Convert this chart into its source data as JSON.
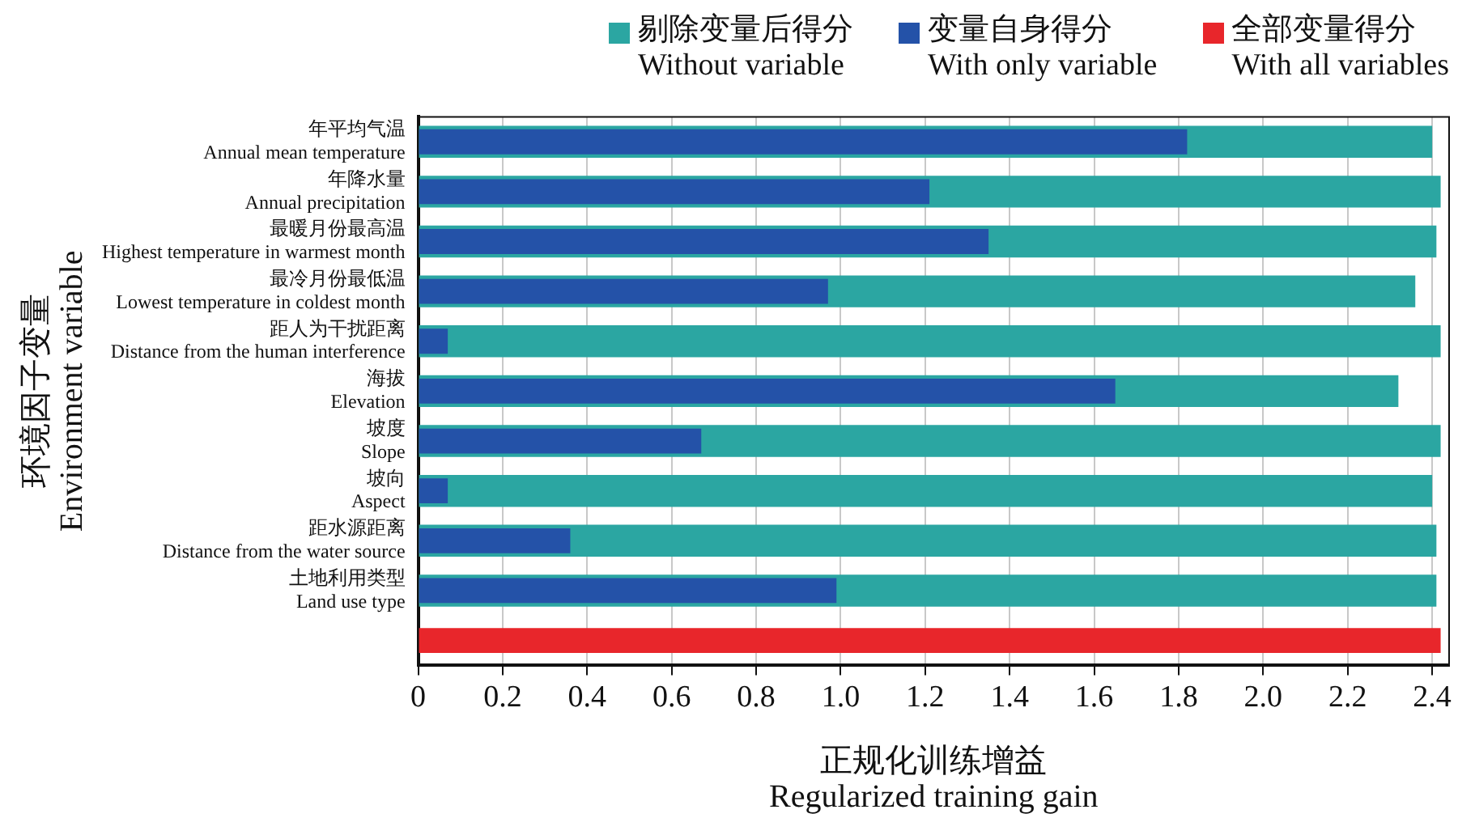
{
  "chart_data": {
    "type": "bar",
    "orientation": "horizontal",
    "xlabel": "正规化训练增益\nRegularized training gain",
    "ylabel": "环境因子变量\nEnvironment variable",
    "categories": [
      "年平均气温\nAnnual mean temperature",
      "年降水量\nAnnual precipitation",
      "最暖月份最高温\nHighest temperature in warmest month",
      "最冷月份最低温\nLowest temperature in coldest month",
      "距人为干扰距离\nDistance from the human interference",
      "海拔\nElevation",
      "坡度\nSlope",
      "坡向\nAspect",
      "距水源距离\nDistance from the water source",
      "土地利用类型\nLand use type",
      null
    ],
    "series": [
      {
        "name": "剔除变量后得分\nWithout variable",
        "color": "#2ba6a2",
        "values": [
          2.4,
          2.42,
          2.41,
          2.36,
          2.42,
          2.32,
          2.42,
          2.4,
          2.41,
          2.41,
          null
        ]
      },
      {
        "name": "变量自身得分\nWith only variable",
        "color": "#2452a8",
        "values": [
          1.82,
          1.21,
          1.35,
          0.97,
          0.07,
          1.65,
          0.67,
          0.07,
          0.36,
          0.99,
          null
        ]
      },
      {
        "name": "全部变量得分\nWith all variables",
        "color": "#e8262b",
        "values": [
          null,
          null,
          null,
          null,
          null,
          null,
          null,
          null,
          null,
          null,
          2.42
        ]
      }
    ],
    "xlim": [
      0,
      2.44
    ],
    "xticks": [
      0,
      0.2,
      0.4,
      0.6,
      0.8,
      {
        "value": 1,
        "label": "1.0"
      },
      1.2,
      1.4,
      1.6,
      1.8,
      {
        "value": 2,
        "label": "2.0"
      },
      2.2,
      2.4
    ],
    "grid": "x",
    "legend": "top"
  }
}
